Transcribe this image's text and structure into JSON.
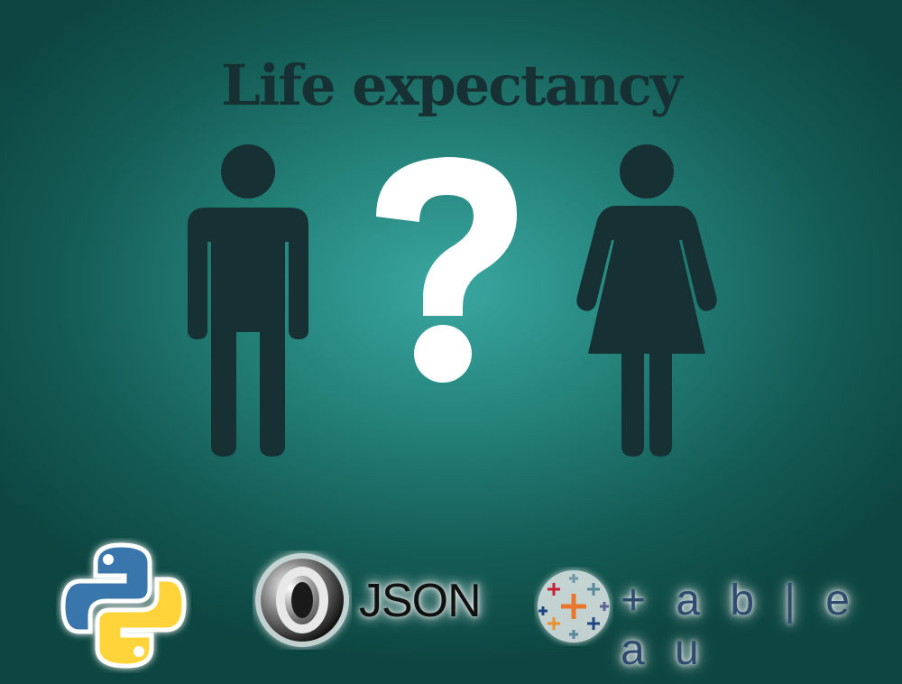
{
  "title": "Life expectancy",
  "figures": {
    "man": "man-icon",
    "question": "question-mark-icon",
    "woman": "woman-icon"
  },
  "logos": {
    "python": "python-logo-icon",
    "json_label": "JSON",
    "tableau_label": "+ a b | e a u"
  },
  "colors": {
    "background_center": "#3aa7a1",
    "background_edge": "#0d4641",
    "figure": "#173033",
    "question": "#ffffff",
    "python_blue": "#3776ab",
    "python_yellow": "#ffd43b"
  }
}
